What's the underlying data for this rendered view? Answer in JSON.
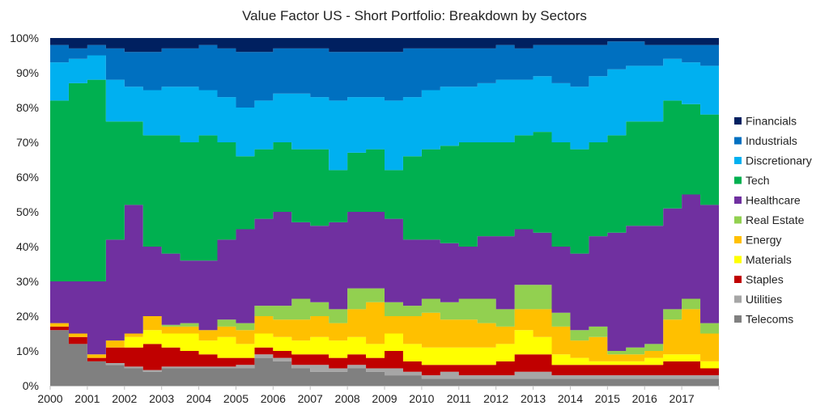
{
  "chart_data": {
    "type": "area",
    "stacked": true,
    "percent": true,
    "title": "Value Factor US - Short Portfolio: Breakdown by Sectors",
    "xlabel": "",
    "ylabel": "",
    "xlim": [
      2000,
      2018
    ],
    "ylim": [
      0,
      100
    ],
    "grid": false,
    "legend_position": "right",
    "x_tick_labels": [
      "2000",
      "2001",
      "2002",
      "2003",
      "2004",
      "2005",
      "2006",
      "2007",
      "2008",
      "2009",
      "2010",
      "2011",
      "2012",
      "2013",
      "2014",
      "2015",
      "2016",
      "2017"
    ],
    "y_tick_labels": [
      "0%",
      "10%",
      "20%",
      "30%",
      "40%",
      "50%",
      "60%",
      "70%",
      "80%",
      "90%",
      "100%"
    ],
    "x": [
      2000.0,
      2000.5,
      2001.0,
      2001.5,
      2002.0,
      2002.5,
      2003.0,
      2003.5,
      2004.0,
      2004.5,
      2005.0,
      2005.5,
      2006.0,
      2006.5,
      2007.0,
      2007.5,
      2008.0,
      2008.5,
      2009.0,
      2009.5,
      2010.0,
      2010.5,
      2011.0,
      2011.5,
      2012.0,
      2012.5,
      2013.0,
      2013.5,
      2014.0,
      2014.5,
      2015.0,
      2015.5,
      2016.0,
      2016.5,
      2017.0,
      2017.5,
      2018.0
    ],
    "series": [
      {
        "name": "Telecoms",
        "color": "#808080",
        "values": [
          16,
          12,
          7,
          6,
          5,
          4,
          5,
          5,
          5,
          5,
          5,
          8,
          7,
          5,
          4,
          4,
          5,
          4,
          3,
          3,
          2,
          2,
          2,
          2,
          2,
          2,
          2,
          2,
          2,
          2,
          2,
          2,
          2,
          2,
          2,
          2,
          2
        ]
      },
      {
        "name": "Utilities",
        "color": "#A6A6A6",
        "values": [
          0,
          0,
          0,
          0.5,
          0.5,
          0.5,
          0.5,
          0.5,
          0.5,
          0.5,
          1,
          1,
          1,
          1,
          2,
          1,
          1,
          1,
          2,
          1,
          1,
          2,
          1,
          1,
          1,
          2,
          2,
          1,
          1,
          1,
          1,
          1,
          1,
          1,
          1,
          1,
          1
        ]
      },
      {
        "name": "Staples",
        "color": "#C00000",
        "values": [
          1,
          2,
          1,
          4.5,
          5.5,
          7.5,
          5.5,
          4.5,
          3.5,
          2.5,
          2,
          2,
          2,
          3,
          3,
          3,
          3,
          3,
          5,
          3,
          3,
          2,
          3,
          3,
          4,
          5,
          5,
          3,
          3,
          3,
          3,
          3,
          3,
          4,
          4,
          2,
          1
        ]
      },
      {
        "name": "Materials",
        "color": "#FFFF00",
        "values": [
          0,
          0,
          0,
          0,
          3,
          4,
          4,
          5,
          4,
          6,
          4,
          4,
          4,
          4,
          5,
          5,
          5,
          4,
          5,
          5,
          5,
          5,
          5,
          5,
          5,
          7,
          5,
          3,
          2,
          1,
          1,
          1,
          2,
          2,
          2,
          2,
          2
        ]
      },
      {
        "name": "Energy",
        "color": "#FFC000",
        "values": [
          1,
          1,
          1,
          2,
          1,
          4,
          2,
          2,
          3,
          3,
          4,
          5,
          5,
          6,
          6,
          5,
          8,
          12,
          5,
          8,
          10,
          8,
          8,
          7,
          5,
          6,
          8,
          8,
          5,
          7,
          2,
          2,
          2,
          10,
          13,
          8,
          4
        ]
      },
      {
        "name": "Real Estate",
        "color": "#92D050",
        "values": [
          0,
          0,
          0,
          0,
          0,
          0,
          0.5,
          1,
          0,
          2,
          2,
          3,
          4,
          6,
          4,
          4,
          6,
          4,
          4,
          3,
          4,
          5,
          6,
          7,
          5,
          7,
          7,
          4,
          3,
          3,
          1,
          2,
          2,
          3,
          3,
          3,
          3
        ]
      },
      {
        "name": "Healthcare",
        "color": "#7030A0",
        "values": [
          12,
          15,
          21,
          29,
          37,
          20,
          20.5,
          18,
          20,
          23,
          27,
          25,
          27,
          22,
          22,
          25,
          22,
          22,
          24,
          19,
          17,
          17,
          15,
          18,
          21,
          16,
          15,
          19,
          22,
          26,
          34,
          35,
          34,
          29,
          30,
          34,
          34
        ]
      },
      {
        "name": "Tech",
        "color": "#00B050",
        "values": [
          52,
          57,
          58,
          34,
          24,
          32,
          34,
          34,
          36,
          28,
          21,
          20,
          20,
          21,
          22,
          15,
          17,
          18,
          14,
          24,
          26,
          28,
          30,
          27,
          27,
          27,
          29,
          30,
          30,
          27,
          28,
          30,
          30,
          31,
          26,
          26,
          31
        ]
      },
      {
        "name": "Discretionary",
        "color": "#00B0F0",
        "values": [
          11,
          7,
          7,
          12,
          10,
          13,
          14,
          16,
          13,
          13,
          14,
          14,
          14,
          16,
          15,
          20,
          16,
          15,
          20,
          17,
          17,
          17,
          16,
          17,
          18,
          16,
          16,
          17,
          18,
          19,
          19,
          16,
          16,
          12,
          12,
          14,
          14
        ]
      },
      {
        "name": "Industrials",
        "color": "#0070C0",
        "values": [
          5,
          3,
          3,
          9,
          10,
          11,
          11,
          11,
          13,
          14,
          16,
          14,
          13,
          13,
          14,
          14,
          13,
          13,
          14,
          14,
          12,
          11,
          11,
          10,
          10,
          9,
          9,
          11,
          12,
          9,
          8,
          7,
          6,
          4,
          5,
          6,
          6
        ]
      },
      {
        "name": "Financials",
        "color": "#002060",
        "values": [
          2,
          3,
          2,
          3,
          4,
          4,
          3,
          3,
          2,
          3,
          4,
          4,
          3,
          3,
          3,
          4,
          4,
          4,
          4,
          3,
          3,
          3,
          3,
          3,
          2,
          3,
          2,
          2,
          2,
          2,
          1,
          1,
          2,
          2,
          2,
          2,
          2
        ]
      }
    ],
    "legend_order": [
      "Financials",
      "Industrials",
      "Discretionary",
      "Tech",
      "Healthcare",
      "Real Estate",
      "Energy",
      "Materials",
      "Staples",
      "Utilities",
      "Telecoms"
    ]
  }
}
